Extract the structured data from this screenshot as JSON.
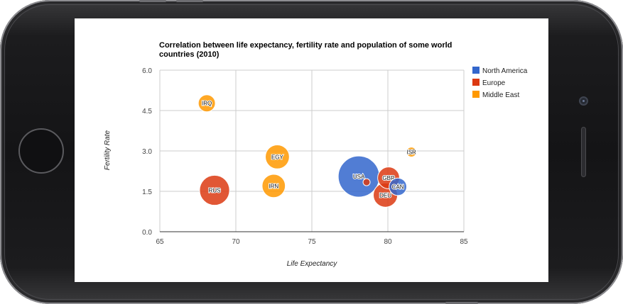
{
  "chart_data": {
    "type": "bubble",
    "title": "Correlation between life expectancy, fertility rate and population of some world countries (2010)",
    "title_lines": [
      "Correlation between life expectancy, fertility rate and population of some world",
      "countries (2010)"
    ],
    "xlabel": "Life Expectancy",
    "ylabel": "Fertility Rate",
    "xlim": [
      65,
      85
    ],
    "ylim": [
      0,
      6
    ],
    "x_ticks": [
      "65",
      "70",
      "75",
      "80",
      "85"
    ],
    "y_ticks": [
      "0.0",
      "1.5",
      "3.0",
      "4.5",
      "6.0"
    ],
    "grid": true,
    "legend_position": "right",
    "series": [
      {
        "name": "North America",
        "color": "#3366cc"
      },
      {
        "name": "Europe",
        "color": "#dc3912"
      },
      {
        "name": "Middle East",
        "color": "#ff9900"
      }
    ],
    "points": [
      {
        "id": "CAN",
        "x": 80.66,
        "y": 1.67,
        "region": "North America",
        "population": 33739900
      },
      {
        "id": "DEU",
        "x": 79.84,
        "y": 1.36,
        "region": "Europe",
        "population": 81902307
      },
      {
        "id": "DNK",
        "x": 78.6,
        "y": 1.84,
        "region": "Europe",
        "population": 5523095
      },
      {
        "id": "EGY",
        "x": 72.73,
        "y": 2.78,
        "region": "Middle East",
        "population": 79716203
      },
      {
        "id": "GBR",
        "x": 80.05,
        "y": 2.0,
        "region": "Europe",
        "population": 61801570
      },
      {
        "id": "IRN",
        "x": 72.49,
        "y": 1.7,
        "region": "Middle East",
        "population": 73137148
      },
      {
        "id": "IRQ",
        "x": 68.09,
        "y": 4.77,
        "region": "Middle East",
        "population": 31090763
      },
      {
        "id": "ISR",
        "x": 81.55,
        "y": 2.96,
        "region": "Middle East",
        "population": 7485600
      },
      {
        "id": "RUS",
        "x": 68.6,
        "y": 1.54,
        "region": "Europe",
        "population": 141850000
      },
      {
        "id": "USA",
        "x": 78.09,
        "y": 2.05,
        "region": "North America",
        "population": 307007000
      }
    ]
  }
}
